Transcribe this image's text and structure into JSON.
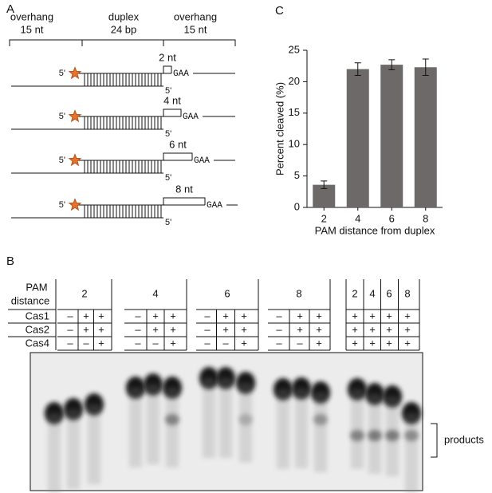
{
  "panel_a": {
    "label": "A",
    "header": [
      {
        "name": "overhang",
        "length": "15 nt"
      },
      {
        "name": "duplex",
        "length": "24 bp"
      },
      {
        "name": "overhang",
        "length": "15 nt"
      }
    ],
    "constructs": [
      {
        "left_end": "5'",
        "spacing": "2 nt",
        "pam": "GAA",
        "right_end": "5'"
      },
      {
        "left_end": "5'",
        "spacing": "4 nt",
        "pam": "GAA",
        "right_end": "5'"
      },
      {
        "left_end": "5'",
        "spacing": "6 nt",
        "pam": "GAA",
        "right_end": "5'"
      },
      {
        "left_end": "5'",
        "spacing": "8 nt",
        "pam": "GAA",
        "right_end": "5'"
      }
    ]
  },
  "panel_b": {
    "label": "B",
    "row_labels": [
      "PAM",
      "distance",
      "Cas1",
      "Cas2",
      "Cas4"
    ],
    "groups": [
      {
        "pam": [
          "2"
        ],
        "cas1": [
          "–",
          "+",
          "+"
        ],
        "cas2": [
          "–",
          "+",
          "+"
        ],
        "cas4": [
          "–",
          "–",
          "+"
        ]
      },
      {
        "pam": [
          "4"
        ],
        "cas1": [
          "–",
          "+",
          "+"
        ],
        "cas2": [
          "–",
          "+",
          "+"
        ],
        "cas4": [
          "–",
          "–",
          "+"
        ]
      },
      {
        "pam": [
          "6"
        ],
        "cas1": [
          "–",
          "+",
          "+"
        ],
        "cas2": [
          "–",
          "+",
          "+"
        ],
        "cas4": [
          "–",
          "–",
          "+"
        ]
      },
      {
        "pam": [
          "8"
        ],
        "cas1": [
          "–",
          "+",
          "+"
        ],
        "cas2": [
          "–",
          "+",
          "+"
        ],
        "cas4": [
          "–",
          "–",
          "+"
        ]
      },
      {
        "pam": [
          "2",
          "4",
          "6",
          "8"
        ],
        "cas1": [
          "+",
          "+",
          "+",
          "+"
        ],
        "cas2": [
          "+",
          "+",
          "+",
          "+"
        ],
        "cas4": [
          "+",
          "+",
          "+",
          "+"
        ]
      }
    ],
    "gel_label": "products"
  },
  "chart_data": {
    "type": "bar",
    "panel_label": "C",
    "x_label": "PAM distance from duplex",
    "y_label": "Percent cleaved (%)",
    "categories": [
      "2",
      "4",
      "6",
      "8"
    ],
    "values": [
      3.6,
      22.0,
      22.7,
      22.3
    ],
    "errors": [
      0.6,
      1.0,
      0.8,
      1.3
    ],
    "color": "#6d6969",
    "ylim": [
      0,
      25
    ],
    "yticks": [
      0,
      5,
      10,
      15,
      20,
      25
    ]
  }
}
